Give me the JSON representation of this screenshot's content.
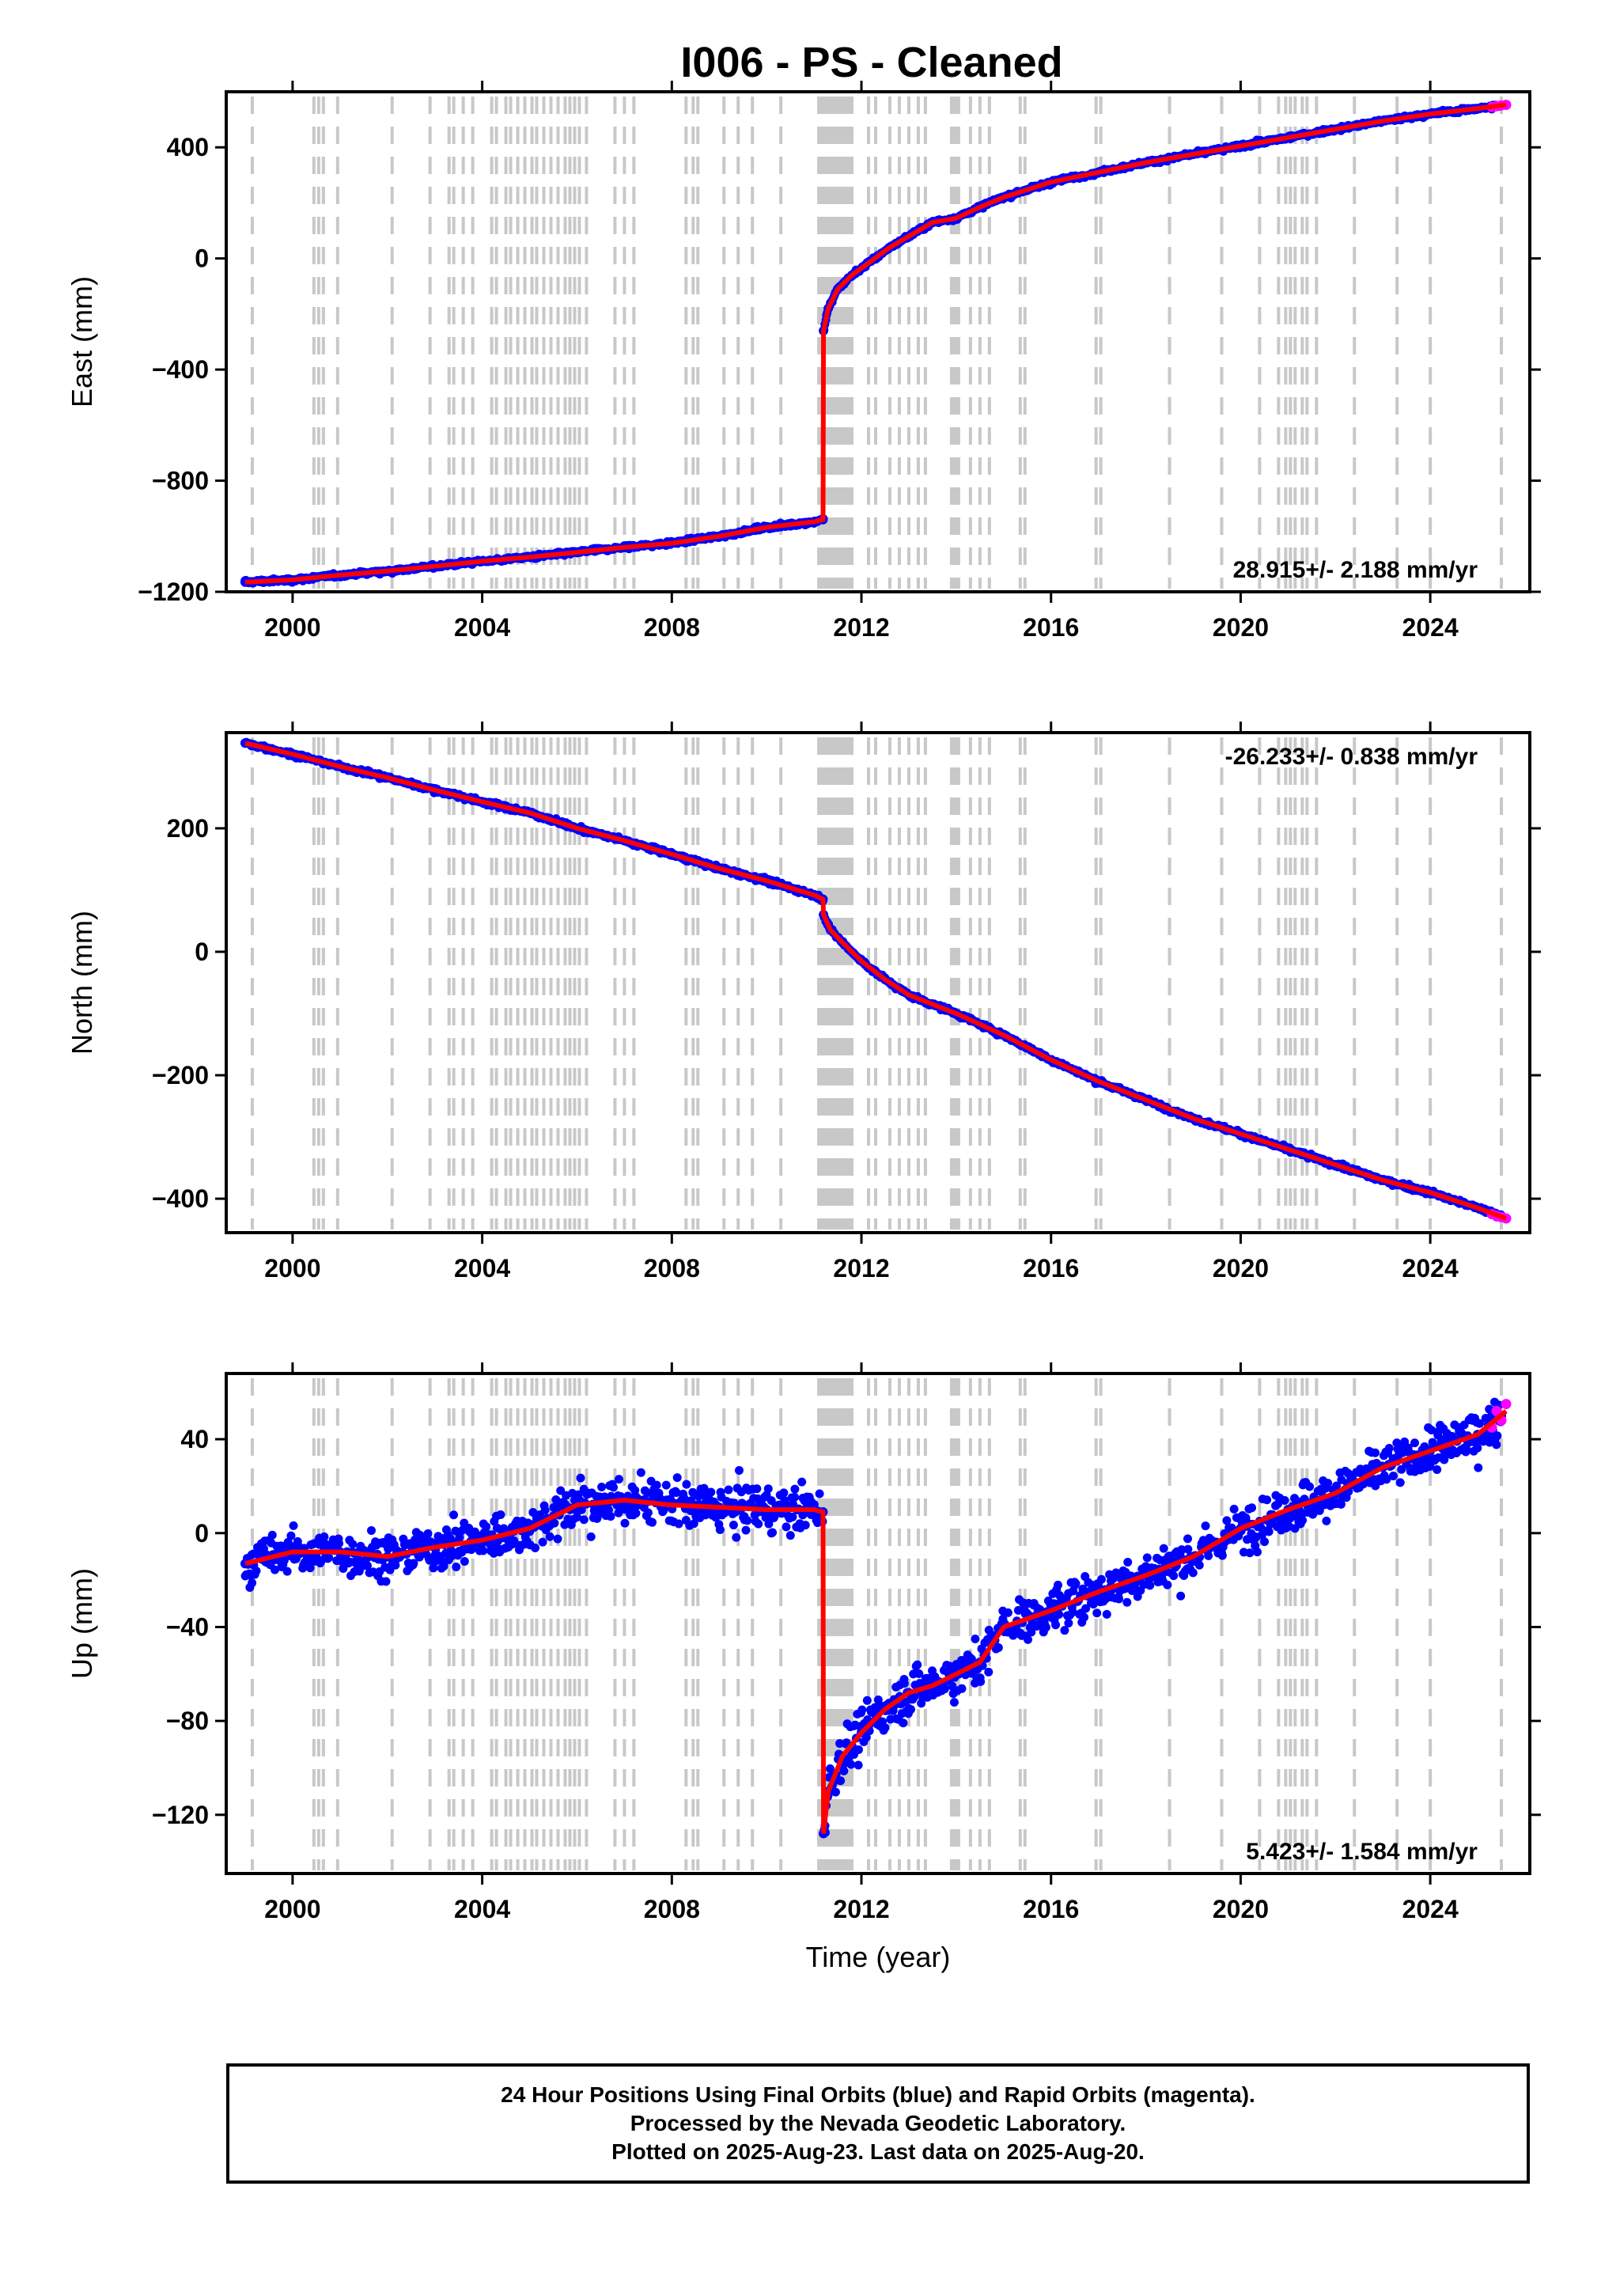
{
  "title": "I006  - PS - Cleaned",
  "footer": {
    "line1": "24 Hour Positions Using Final Orbits (blue) and Rapid Orbits (magenta).",
    "line2": "Processed by the Nevada Geodetic Laboratory.",
    "line3": "Plotted on 2025-Aug-23. Last data on 2025-Aug-20."
  },
  "colors": {
    "final_orbits": "#0000ff",
    "rapid_orbits": "#ff00ff",
    "model_fit": "#ff0000",
    "equipment_change_lines": "#c8c8c8"
  },
  "chart_data": [
    {
      "type": "scatter",
      "ylabel": "East (mm)",
      "xlabel": "",
      "xlim": [
        1998.6,
        2026.1
      ],
      "ylim": [
        -1200,
        600
      ],
      "xticks": [
        2000,
        2004,
        2008,
        2012,
        2016,
        2020,
        2024
      ],
      "yticks": [
        -1200,
        -800,
        -400,
        0,
        400
      ],
      "ytick_labels": [
        "−1200",
        "−800",
        "−400",
        "0",
        "400"
      ],
      "rate_label": "28.915+/- 2.188 mm/yr",
      "rate_position": "bottom-right",
      "series": [
        {
          "key": "final",
          "x": [
            1999.0,
            2000.0,
            2001.0,
            2002.0,
            2003.0,
            2004.0,
            2005.0,
            2006.0,
            2007.0,
            2008.0,
            2009.0,
            2010.0,
            2011.0,
            2011.19,
            2011.2,
            2011.3,
            2011.5,
            2011.8,
            2012.2,
            2012.6,
            2013.0,
            2013.5,
            2014.0,
            2014.5,
            2015.0,
            2016.0,
            2017.0,
            2018.0,
            2019.0,
            2020.0,
            2021.0,
            2022.0,
            2023.0,
            2024.0,
            2025.0,
            2025.5
          ],
          "y": [
            -1165,
            -1157,
            -1140,
            -1125,
            -1108,
            -1090,
            -1075,
            -1058,
            -1040,
            -1025,
            -1000,
            -968,
            -948,
            -940,
            -260,
            -180,
            -110,
            -60,
            -10,
            40,
            80,
            130,
            145,
            185,
            220,
            275,
            310,
            345,
            375,
            405,
            435,
            465,
            495,
            520,
            540,
            550
          ]
        },
        {
          "key": "rapid",
          "x": [
            2025.3,
            2025.4,
            2025.5,
            2025.6
          ],
          "y": [
            545,
            548,
            551,
            553
          ]
        }
      ],
      "model_fit": {
        "x": [
          1999.0,
          2000.0,
          2001.0,
          2002.0,
          2003.0,
          2004.0,
          2005.0,
          2006.0,
          2007.0,
          2008.0,
          2009.0,
          2010.0,
          2011.0,
          2011.19,
          2011.2,
          2011.3,
          2011.5,
          2011.8,
          2012.2,
          2012.6,
          2013.0,
          2013.5,
          2014.0,
          2014.5,
          2015.0,
          2016.0,
          2017.0,
          2018.0,
          2019.0,
          2020.0,
          2021.0,
          2022.0,
          2023.0,
          2024.0,
          2025.0,
          2025.6
        ],
        "y": [
          -1165,
          -1157,
          -1140,
          -1125,
          -1108,
          -1090,
          -1075,
          -1058,
          -1040,
          -1025,
          -1000,
          -968,
          -948,
          -940,
          -260,
          -180,
          -110,
          -60,
          -10,
          40,
          80,
          130,
          145,
          185,
          220,
          275,
          310,
          345,
          375,
          405,
          435,
          465,
          495,
          520,
          540,
          553
        ]
      },
      "scatter_noise_mm": 6
    },
    {
      "type": "scatter",
      "ylabel": "North (mm)",
      "xlabel": "",
      "xlim": [
        1998.6,
        2026.1
      ],
      "ylim": [
        -455,
        355
      ],
      "xticks": [
        2000,
        2004,
        2008,
        2012,
        2016,
        2020,
        2024
      ],
      "yticks": [
        -400,
        -200,
        0,
        200
      ],
      "ytick_labels": [
        "−400",
        "−200",
        "0",
        "200"
      ],
      "rate_label": "-26.233+/- 0.838 mm/yr",
      "rate_position": "top-right",
      "series": [
        {
          "key": "final",
          "x": [
            1999.0,
            2000.0,
            2001.0,
            2002.0,
            2003.0,
            2004.0,
            2005.0,
            2006.0,
            2007.0,
            2008.0,
            2009.0,
            2010.0,
            2011.0,
            2011.19,
            2011.2,
            2011.35,
            2011.6,
            2012.0,
            2012.5,
            2013.0,
            2013.5,
            2014.0,
            2015.0,
            2016.0,
            2017.0,
            2018.0,
            2019.0,
            2020.0,
            2021.0,
            2022.0,
            2023.0,
            2024.0,
            2025.0,
            2025.5
          ],
          "y": [
            338,
            320,
            300,
            282,
            262,
            243,
            225,
            200,
            180,
            158,
            135,
            115,
            92,
            85,
            60,
            35,
            15,
            -15,
            -45,
            -70,
            -85,
            -100,
            -135,
            -175,
            -210,
            -240,
            -270,
            -295,
            -320,
            -345,
            -370,
            -390,
            -415,
            -428
          ]
        },
        {
          "key": "rapid",
          "x": [
            2025.3,
            2025.4,
            2025.5,
            2025.6
          ],
          "y": [
            -425,
            -428,
            -430,
            -432
          ]
        }
      ],
      "model_fit": {
        "x": [
          1999.0,
          2000.0,
          2001.0,
          2002.0,
          2003.0,
          2004.0,
          2005.0,
          2006.0,
          2007.0,
          2008.0,
          2009.0,
          2010.0,
          2011.0,
          2011.19,
          2011.2,
          2011.35,
          2011.6,
          2012.0,
          2012.5,
          2013.0,
          2013.5,
          2014.0,
          2015.0,
          2016.0,
          2017.0,
          2018.0,
          2019.0,
          2020.0,
          2021.0,
          2022.0,
          2023.0,
          2024.0,
          2025.0,
          2025.6
        ],
        "y": [
          338,
          320,
          300,
          282,
          262,
          243,
          225,
          200,
          180,
          158,
          135,
          115,
          92,
          85,
          60,
          35,
          15,
          -15,
          -45,
          -70,
          -85,
          -100,
          -135,
          -175,
          -210,
          -240,
          -270,
          -295,
          -320,
          -345,
          -370,
          -390,
          -415,
          -432
        ]
      },
      "scatter_noise_mm": 3
    },
    {
      "type": "scatter",
      "ylabel": "Up (mm)",
      "xlabel": "Time (year)",
      "xlim": [
        1998.6,
        2026.1
      ],
      "ylim": [
        -145,
        68
      ],
      "xticks": [
        2000,
        2004,
        2008,
        2012,
        2016,
        2020,
        2024
      ],
      "yticks": [
        -120,
        -80,
        -40,
        0,
        40
      ],
      "ytick_labels": [
        "−120",
        "−80",
        "−40",
        "0",
        "40"
      ],
      "rate_label": "5.423+/- 1.584 mm/yr",
      "rate_position": "bottom-right",
      "series": [
        {
          "key": "final",
          "x": [
            1999.0,
            2000.0,
            2001.0,
            2002.0,
            2003.0,
            2004.0,
            2005.0,
            2006.0,
            2007.0,
            2008.0,
            2009.0,
            2010.0,
            2011.0,
            2011.19,
            2011.2,
            2011.3,
            2011.6,
            2012.0,
            2012.5,
            2013.0,
            2013.5,
            2014.0,
            2014.5,
            2015.0,
            2016.0,
            2017.0,
            2018.0,
            2019.0,
            2020.0,
            2021.0,
            2022.0,
            2023.0,
            2024.0,
            2025.0,
            2025.5
          ],
          "y": [
            -13,
            -8,
            -8,
            -10,
            -6,
            -3,
            2,
            12,
            14,
            12,
            11,
            10,
            10,
            9,
            -128,
            -110,
            -95,
            -85,
            -75,
            -68,
            -65,
            -60,
            -55,
            -40,
            -33,
            -25,
            -18,
            -10,
            2,
            10,
            17,
            28,
            35,
            42,
            50
          ]
        },
        {
          "key": "rapid",
          "x": [
            2025.3,
            2025.4,
            2025.5,
            2025.6
          ],
          "y": [
            45,
            52,
            48,
            55
          ]
        }
      ],
      "model_fit": {
        "x": [
          1999.0,
          2000.0,
          2001.0,
          2002.0,
          2003.0,
          2004.0,
          2005.0,
          2006.0,
          2007.0,
          2008.0,
          2009.0,
          2010.0,
          2011.0,
          2011.19,
          2011.2,
          2011.3,
          2011.6,
          2012.0,
          2012.5,
          2013.0,
          2013.5,
          2014.0,
          2014.5,
          2015.0,
          2016.0,
          2017.0,
          2018.0,
          2019.0,
          2020.0,
          2021.0,
          2022.0,
          2023.0,
          2024.0,
          2025.0,
          2025.6
        ],
        "y": [
          -13,
          -8,
          -8,
          -10,
          -6,
          -3,
          2,
          12,
          14,
          12,
          11,
          10,
          10,
          9,
          -128,
          -110,
          -95,
          -85,
          -75,
          -68,
          -65,
          -60,
          -55,
          -40,
          -33,
          -25,
          -18,
          -10,
          2,
          10,
          17,
          28,
          35,
          42,
          52
        ]
      },
      "scatter_noise_mm": 8
    }
  ],
  "equipment_change_epochs": [
    1999.15,
    2000.45,
    2000.55,
    2000.65,
    2000.95,
    2002.1,
    2002.9,
    2003.3,
    2003.4,
    2003.6,
    2003.8,
    2004.2,
    2004.3,
    2004.5,
    2004.6,
    2004.75,
    2004.9,
    2005.05,
    2005.15,
    2005.3,
    2005.45,
    2005.6,
    2005.75,
    2005.85,
    2005.95,
    2006.05,
    2006.2,
    2006.8,
    2007.0,
    2007.2,
    2008.3,
    2008.45,
    2008.55,
    2009.1,
    2009.4,
    2009.7,
    2010.3,
    2011.1,
    2011.15,
    2011.2,
    2011.25,
    2011.3,
    2011.35,
    2011.4,
    2011.45,
    2011.5,
    2011.55,
    2011.6,
    2011.65,
    2011.7,
    2011.75,
    2011.8,
    2012.15,
    2012.3,
    2012.6,
    2012.8,
    2013.0,
    2013.2,
    2013.35,
    2013.9,
    2013.95,
    2014.0,
    2014.05,
    2014.3,
    2014.5,
    2014.7,
    2015.35,
    2015.45,
    2016.95,
    2017.05,
    2018.5,
    2019.6,
    2020.4,
    2020.8,
    2020.95,
    2021.05,
    2021.15,
    2021.3,
    2021.4,
    2021.6,
    2022.4,
    2023.3,
    2024.0,
    2025.5
  ]
}
